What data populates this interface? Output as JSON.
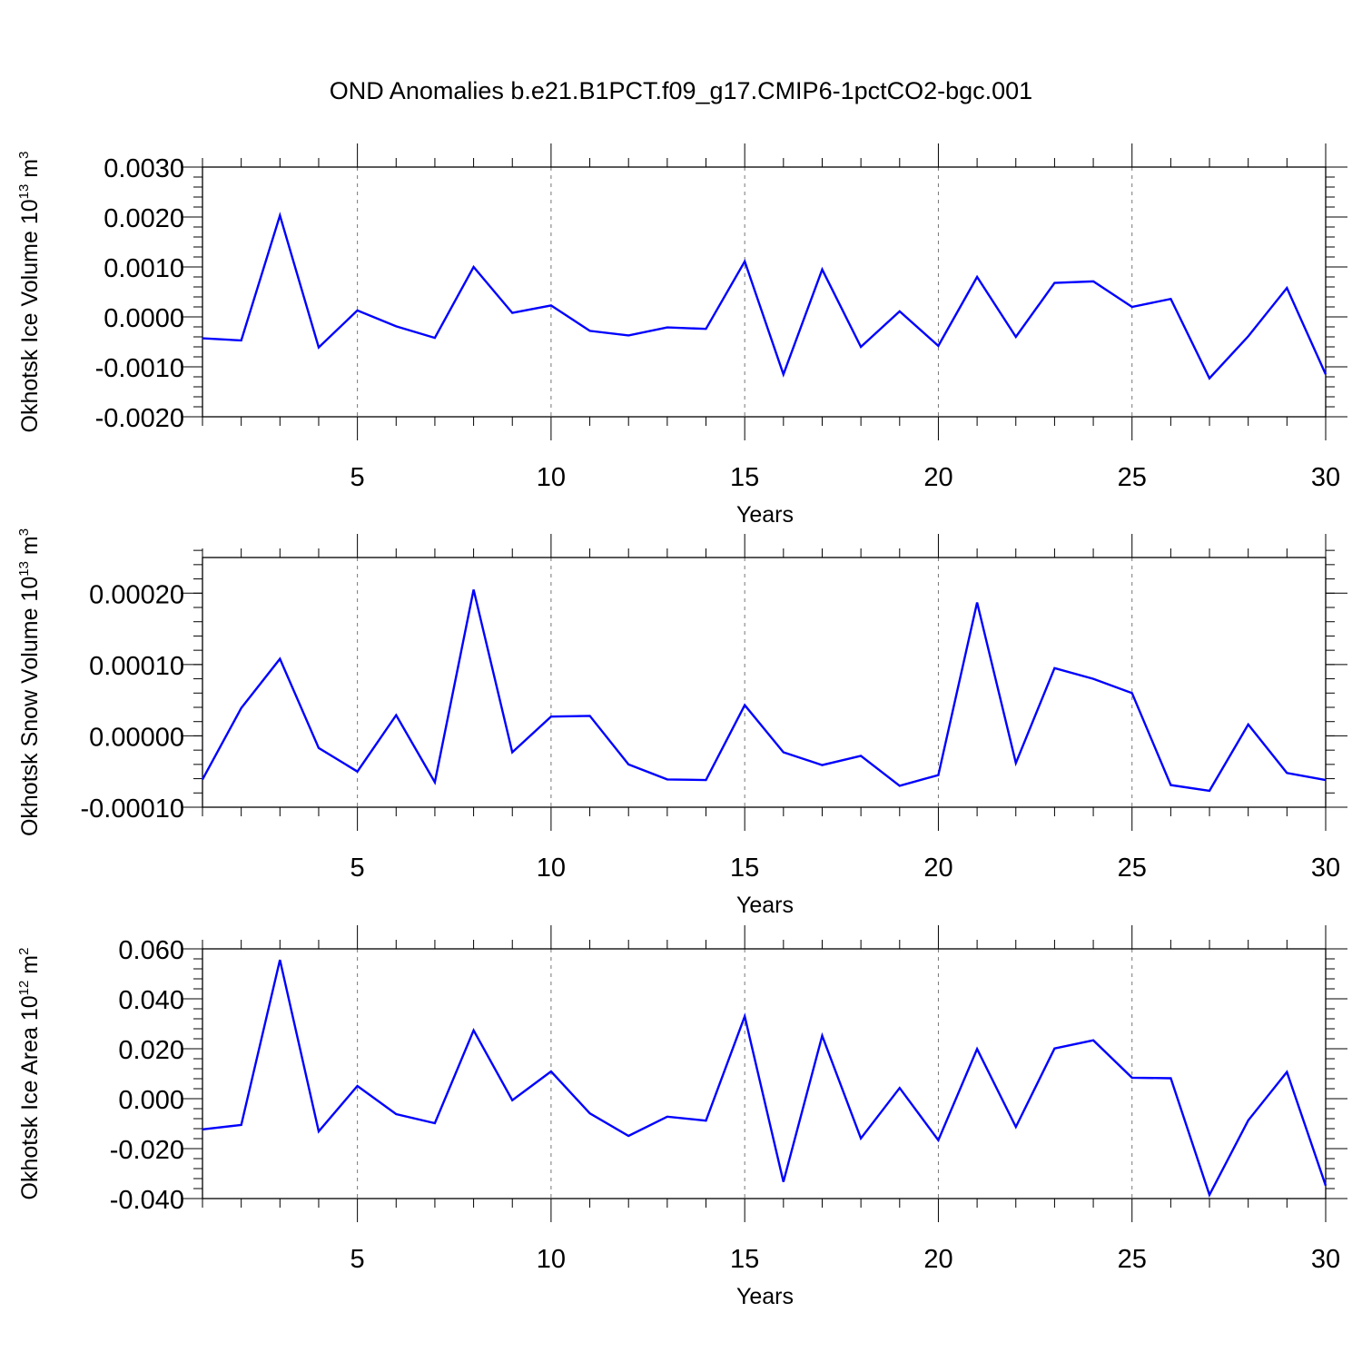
{
  "title": "OND Anomalies b.e21.B1PCT.f09_g17.CMIP6-1pctCO2-bgc.001",
  "line_color": "#0000ff",
  "chart_data": [
    {
      "type": "line",
      "ylabel": "Okhotsk Ice Volume 10",
      "ylabel_exponent": "13",
      "ylabel_unit": " m",
      "ylabel_unit_exponent": "3",
      "xlabel": "Years",
      "xlim": [
        1,
        30
      ],
      "ylim": [
        -0.002,
        0.003
      ],
      "xticks": [
        5,
        10,
        15,
        20,
        25,
        30
      ],
      "xtick_labels": [
        "5",
        "10",
        "15",
        "20",
        "25",
        "30"
      ],
      "yticks": [
        -0.002,
        -0.001,
        0.0,
        0.001,
        0.002,
        0.003
      ],
      "ytick_labels": [
        "-0.0020",
        "-0.0010",
        "0.0000",
        "0.0010",
        "0.0020",
        "0.0030"
      ],
      "grid": "vertical dashed at major x ticks",
      "x": [
        1,
        2,
        3,
        4,
        5,
        6,
        7,
        8,
        9,
        10,
        11,
        12,
        13,
        14,
        15,
        16,
        17,
        18,
        19,
        20,
        21,
        22,
        23,
        24,
        25,
        26,
        27,
        28,
        29,
        30
      ],
      "series": [
        {
          "name": "Okhotsk Ice Volume",
          "values": [
            -0.00043,
            -0.00047,
            0.00203,
            -0.00061,
            0.00013,
            -0.00019,
            -0.00042,
            0.001,
            8e-05,
            0.00023,
            -0.00028,
            -0.00037,
            -0.00021,
            -0.00024,
            0.00111,
            -0.00115,
            0.00095,
            -0.0006,
            0.00011,
            -0.00058,
            0.0008,
            -0.0004,
            0.00068,
            0.00071,
            0.0002,
            0.00036,
            -0.00123,
            -0.00039,
            0.00058,
            -0.00115
          ]
        }
      ]
    },
    {
      "type": "line",
      "ylabel": "Okhotsk Snow Volume 10",
      "ylabel_exponent": "13",
      "ylabel_unit": " m",
      "ylabel_unit_exponent": "3",
      "xlabel": "Years",
      "xlim": [
        1,
        30
      ],
      "ylim": [
        -0.0001,
        0.00025
      ],
      "xticks": [
        5,
        10,
        15,
        20,
        25,
        30
      ],
      "xtick_labels": [
        "5",
        "10",
        "15",
        "20",
        "25",
        "30"
      ],
      "yticks": [
        -0.0001,
        0.0,
        0.0001,
        0.0002
      ],
      "ytick_labels": [
        "-0.00010",
        "0.00000",
        "0.00010",
        "0.00020"
      ],
      "grid": "vertical dashed at major x ticks",
      "x": [
        1,
        2,
        3,
        4,
        5,
        6,
        7,
        8,
        9,
        10,
        11,
        12,
        13,
        14,
        15,
        16,
        17,
        18,
        19,
        20,
        21,
        22,
        23,
        24,
        25,
        26,
        27,
        28,
        29,
        30
      ],
      "series": [
        {
          "name": "Okhotsk Snow Volume",
          "values": [
            -6.1e-05,
            3.9e-05,
            0.000108,
            -1.7e-05,
            -5e-05,
            2.9e-05,
            -6.5e-05,
            0.000205,
            -2.3e-05,
            2.7e-05,
            2.8e-05,
            -4e-05,
            -6.1e-05,
            -6.2e-05,
            4.3e-05,
            -2.3e-05,
            -4.1e-05,
            -2.8e-05,
            -7e-05,
            -5.5e-05,
            0.000187,
            -3.8e-05,
            9.5e-05,
            8e-05,
            6e-05,
            -6.9e-05,
            -7.7e-05,
            1.6e-05,
            -5.2e-05,
            -6.2e-05
          ]
        }
      ]
    },
    {
      "type": "line",
      "ylabel": "Okhotsk Ice Area 10",
      "ylabel_exponent": "12",
      "ylabel_unit": " m",
      "ylabel_unit_exponent": "2",
      "xlabel": "Years",
      "xlim": [
        1,
        30
      ],
      "ylim": [
        -0.04,
        0.06
      ],
      "xticks": [
        5,
        10,
        15,
        20,
        25,
        30
      ],
      "xtick_labels": [
        "5",
        "10",
        "15",
        "20",
        "25",
        "30"
      ],
      "yticks": [
        -0.04,
        -0.02,
        0.0,
        0.02,
        0.04,
        0.06
      ],
      "ytick_labels": [
        "-0.040",
        "-0.020",
        "0.000",
        "0.020",
        "0.040",
        "0.060"
      ],
      "grid": "vertical dashed at major x ticks",
      "x": [
        1,
        2,
        3,
        4,
        5,
        6,
        7,
        8,
        9,
        10,
        11,
        12,
        13,
        14,
        15,
        16,
        17,
        18,
        19,
        20,
        21,
        22,
        23,
        24,
        25,
        26,
        27,
        28,
        29,
        30
      ],
      "series": [
        {
          "name": "Okhotsk Ice Area",
          "values": [
            -0.0123,
            -0.0105,
            0.0556,
            -0.0131,
            0.0051,
            -0.0062,
            -0.0098,
            0.0274,
            -0.0006,
            0.0109,
            -0.0059,
            -0.0149,
            -0.0072,
            -0.0088,
            0.033,
            -0.0333,
            0.0252,
            -0.0159,
            0.0043,
            -0.0166,
            0.0199,
            -0.0113,
            0.0201,
            0.0234,
            0.0084,
            0.0082,
            -0.0385,
            -0.0087,
            0.0107,
            -0.0348
          ]
        }
      ]
    }
  ]
}
